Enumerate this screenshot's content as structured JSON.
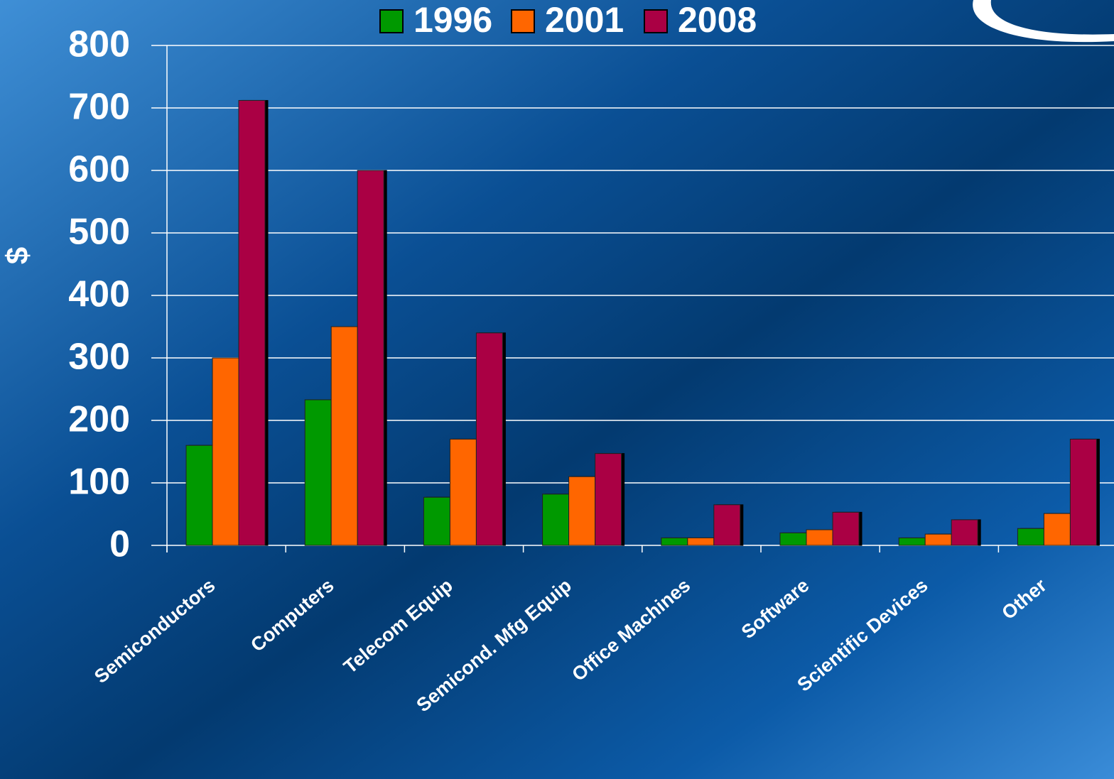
{
  "chart_data": {
    "type": "bar",
    "ylabel": "$",
    "categories": [
      "Semiconductors",
      "Computers",
      "Telecom Equip",
      "Semicond. Mfg Equip",
      "Office Machines",
      "Software",
      "Scientific Devices",
      "Other"
    ],
    "series": [
      {
        "name": "1996",
        "color": "#009900",
        "values": [
          160,
          233,
          77,
          82,
          12,
          20,
          12,
          27
        ]
      },
      {
        "name": "2001",
        "color": "#ff6600",
        "values": [
          300,
          350,
          170,
          110,
          12,
          25,
          18,
          51
        ]
      },
      {
        "name": "2008",
        "color": "#aa0044",
        "values": [
          712,
          600,
          340,
          147,
          65,
          53,
          41,
          170
        ]
      }
    ],
    "ylim": [
      0,
      800
    ],
    "yticks": [
      0,
      100,
      200,
      300,
      400,
      500,
      600,
      700,
      800
    ],
    "grid": true,
    "legend": "top"
  }
}
